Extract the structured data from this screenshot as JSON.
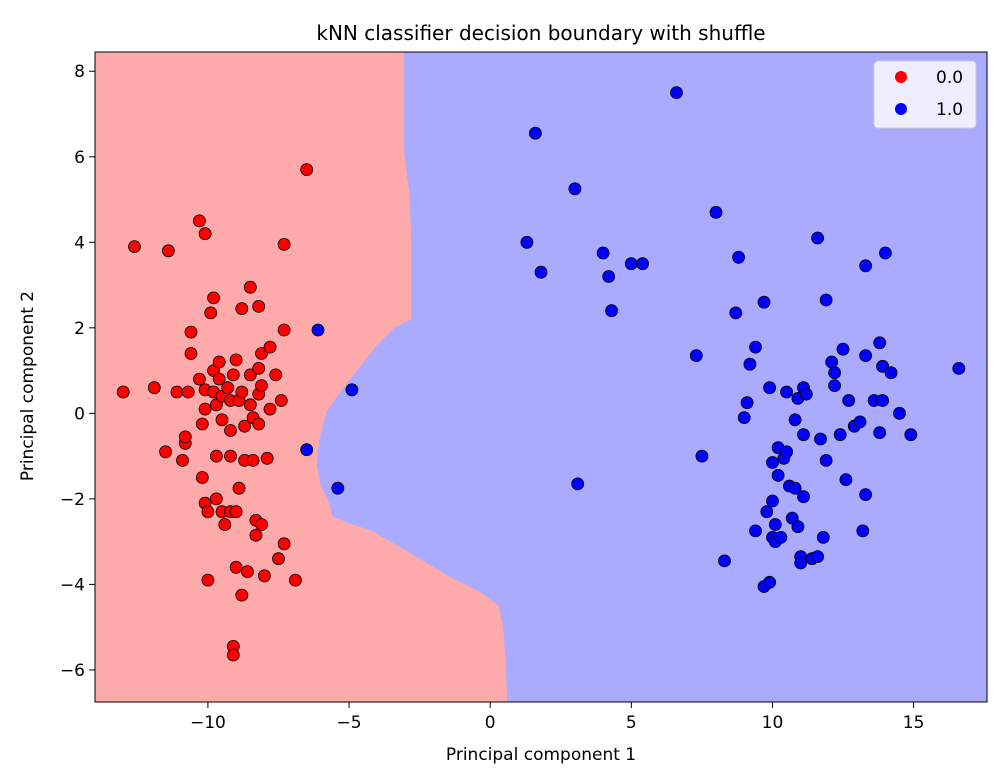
{
  "chart_data": {
    "type": "scatter",
    "title": "kNN classifier decision boundary with shuffle",
    "xlabel": "Principal component 1",
    "ylabel": "Principal component 2",
    "xlim": [
      -14,
      17.6
    ],
    "ylim": [
      -6.75,
      8.45
    ],
    "xticks": [
      -10,
      -5,
      0,
      5,
      10,
      15
    ],
    "yticks": [
      -6,
      -4,
      -2,
      0,
      2,
      4,
      6,
      8
    ],
    "legend_position": "top-right",
    "grid": false,
    "colors": {
      "class0_point": "#ff0000",
      "class1_point": "#0000ff",
      "class0_region": "#ffaaaa",
      "class1_region": "#aaaaff",
      "marker_edge": "#000000"
    },
    "decision_boundary": [
      [
        -3.05,
        8.45
      ],
      [
        -3.05,
        6.1
      ],
      [
        -2.95,
        5.6
      ],
      [
        -2.85,
        5.1
      ],
      [
        -2.8,
        4.0
      ],
      [
        -2.8,
        2.2
      ],
      [
        -3.4,
        2.0
      ],
      [
        -4.0,
        1.6
      ],
      [
        -4.6,
        1.1
      ],
      [
        -5.2,
        0.6
      ],
      [
        -5.8,
        0.05
      ],
      [
        -6.05,
        -0.6
      ],
      [
        -6.15,
        -1.2
      ],
      [
        -6.0,
        -1.7
      ],
      [
        -5.7,
        -2.1
      ],
      [
        -5.6,
        -2.4
      ],
      [
        -5.1,
        -2.55
      ],
      [
        -4.2,
        -2.75
      ],
      [
        -3.0,
        -3.2
      ],
      [
        -1.5,
        -3.8
      ],
      [
        -0.3,
        -4.2
      ],
      [
        0.3,
        -4.5
      ],
      [
        0.45,
        -5.0
      ],
      [
        0.55,
        -5.8
      ],
      [
        0.6,
        -6.75
      ]
    ],
    "series": [
      {
        "name": "0.0",
        "points": [
          [
            -13.0,
            0.5
          ],
          [
            -12.6,
            3.9
          ],
          [
            -11.9,
            0.6
          ],
          [
            -11.4,
            3.8
          ],
          [
            -11.5,
            -0.9
          ],
          [
            -11.1,
            0.5
          ],
          [
            -10.9,
            -1.1
          ],
          [
            -10.8,
            -0.7
          ],
          [
            -10.8,
            -0.55
          ],
          [
            -10.7,
            0.5
          ],
          [
            -10.6,
            1.9
          ],
          [
            -10.6,
            1.4
          ],
          [
            -10.3,
            4.5
          ],
          [
            -10.3,
            0.8
          ],
          [
            -10.2,
            -0.25
          ],
          [
            -10.1,
            4.2
          ],
          [
            -10.1,
            0.55
          ],
          [
            -10.1,
            0.1
          ],
          [
            -10.1,
            -2.1
          ],
          [
            -10.0,
            -2.3
          ],
          [
            -10.0,
            -3.9
          ],
          [
            -10.2,
            -1.5
          ],
          [
            -9.9,
            2.35
          ],
          [
            -9.8,
            2.7
          ],
          [
            -9.8,
            1.0
          ],
          [
            -9.8,
            0.5
          ],
          [
            -9.7,
            0.2
          ],
          [
            -9.7,
            -1.0
          ],
          [
            -9.7,
            -2.0
          ],
          [
            -9.6,
            1.2
          ],
          [
            -9.6,
            0.8
          ],
          [
            -9.5,
            0.4
          ],
          [
            -9.5,
            -0.15
          ],
          [
            -9.5,
            -2.3
          ],
          [
            -9.4,
            -2.6
          ],
          [
            -9.3,
            0.6
          ],
          [
            -9.2,
            0.3
          ],
          [
            -9.2,
            -0.4
          ],
          [
            -9.2,
            -1.0
          ],
          [
            -9.2,
            -2.3
          ],
          [
            -9.1,
            0.9
          ],
          [
            -9.1,
            -5.45
          ],
          [
            -9.1,
            -5.65
          ],
          [
            -9.0,
            1.25
          ],
          [
            -9.0,
            -2.3
          ],
          [
            -9.0,
            -3.6
          ],
          [
            -8.9,
            0.3
          ],
          [
            -8.9,
            -1.75
          ],
          [
            -8.8,
            2.45
          ],
          [
            -8.8,
            -4.25
          ],
          [
            -8.8,
            0.5
          ],
          [
            -8.7,
            -0.3
          ],
          [
            -8.7,
            -1.1
          ],
          [
            -8.6,
            -3.7
          ],
          [
            -8.5,
            2.95
          ],
          [
            -8.5,
            0.9
          ],
          [
            -8.5,
            0.2
          ],
          [
            -8.4,
            -0.1
          ],
          [
            -8.4,
            -1.1
          ],
          [
            -8.3,
            -2.5
          ],
          [
            -8.3,
            -2.85
          ],
          [
            -8.2,
            2.5
          ],
          [
            -8.2,
            1.05
          ],
          [
            -8.2,
            0.45
          ],
          [
            -8.2,
            -0.25
          ],
          [
            -8.1,
            1.4
          ],
          [
            -8.1,
            0.65
          ],
          [
            -8.1,
            -2.6
          ],
          [
            -8.0,
            -3.8
          ],
          [
            -7.9,
            -1.05
          ],
          [
            -7.8,
            0.1
          ],
          [
            -7.8,
            1.55
          ],
          [
            -7.6,
            0.9
          ],
          [
            -7.5,
            -3.4
          ],
          [
            -7.4,
            0.3
          ],
          [
            -7.3,
            3.95
          ],
          [
            -7.3,
            1.95
          ],
          [
            -7.3,
            -3.05
          ],
          [
            -6.9,
            -3.9
          ],
          [
            -6.5,
            5.7
          ]
        ]
      },
      {
        "name": "1.0",
        "points": [
          [
            -6.1,
            1.95
          ],
          [
            -6.5,
            -0.85
          ],
          [
            -4.9,
            0.55
          ],
          [
            -5.4,
            -1.75
          ],
          [
            1.3,
            4.0
          ],
          [
            1.6,
            6.55
          ],
          [
            1.8,
            3.3
          ],
          [
            3.0,
            5.25
          ],
          [
            3.1,
            -1.65
          ],
          [
            4.0,
            3.75
          ],
          [
            4.2,
            3.2
          ],
          [
            4.3,
            2.4
          ],
          [
            5.0,
            3.5
          ],
          [
            5.4,
            3.5
          ],
          [
            6.6,
            7.5
          ],
          [
            7.3,
            1.35
          ],
          [
            7.5,
            -1.0
          ],
          [
            8.0,
            4.7
          ],
          [
            8.3,
            -3.45
          ],
          [
            8.7,
            2.35
          ],
          [
            8.8,
            3.65
          ],
          [
            9.0,
            -0.1
          ],
          [
            9.1,
            0.25
          ],
          [
            9.2,
            1.15
          ],
          [
            9.4,
            1.55
          ],
          [
            9.4,
            -2.75
          ],
          [
            9.7,
            -4.05
          ],
          [
            9.7,
            2.6
          ],
          [
            9.8,
            -2.3
          ],
          [
            9.9,
            0.6
          ],
          [
            9.9,
            -3.95
          ],
          [
            10.0,
            -2.05
          ],
          [
            10.0,
            -1.15
          ],
          [
            10.0,
            -2.9
          ],
          [
            10.1,
            -3.0
          ],
          [
            10.1,
            -2.6
          ],
          [
            10.2,
            -0.8
          ],
          [
            10.2,
            -1.45
          ],
          [
            10.3,
            -2.9
          ],
          [
            10.4,
            -1.05
          ],
          [
            10.5,
            0.5
          ],
          [
            10.5,
            -0.9
          ],
          [
            10.6,
            -1.7
          ],
          [
            10.7,
            -2.45
          ],
          [
            10.8,
            -0.15
          ],
          [
            10.8,
            -1.75
          ],
          [
            10.9,
            -2.65
          ],
          [
            10.9,
            0.35
          ],
          [
            11.0,
            -3.35
          ],
          [
            11.0,
            -3.5
          ],
          [
            11.1,
            0.6
          ],
          [
            11.1,
            -0.5
          ],
          [
            11.1,
            -1.95
          ],
          [
            11.2,
            0.45
          ],
          [
            11.4,
            -3.4
          ],
          [
            11.6,
            4.1
          ],
          [
            11.6,
            -3.35
          ],
          [
            11.7,
            -0.6
          ],
          [
            11.8,
            -2.9
          ],
          [
            11.9,
            2.65
          ],
          [
            11.9,
            -1.1
          ],
          [
            12.1,
            1.2
          ],
          [
            12.2,
            0.65
          ],
          [
            12.2,
            0.95
          ],
          [
            12.4,
            -0.5
          ],
          [
            12.5,
            1.5
          ],
          [
            12.6,
            -1.55
          ],
          [
            12.7,
            0.3
          ],
          [
            12.9,
            -0.3
          ],
          [
            13.1,
            -0.2
          ],
          [
            13.2,
            -2.75
          ],
          [
            13.3,
            3.45
          ],
          [
            13.3,
            1.35
          ],
          [
            13.3,
            -1.9
          ],
          [
            13.6,
            0.3
          ],
          [
            13.8,
            1.65
          ],
          [
            13.8,
            -0.45
          ],
          [
            13.9,
            0.3
          ],
          [
            13.9,
            1.1
          ],
          [
            14.0,
            3.75
          ],
          [
            14.2,
            0.95
          ],
          [
            14.5,
            0.0
          ],
          [
            14.9,
            -0.5
          ],
          [
            16.6,
            1.05
          ]
        ]
      }
    ]
  }
}
